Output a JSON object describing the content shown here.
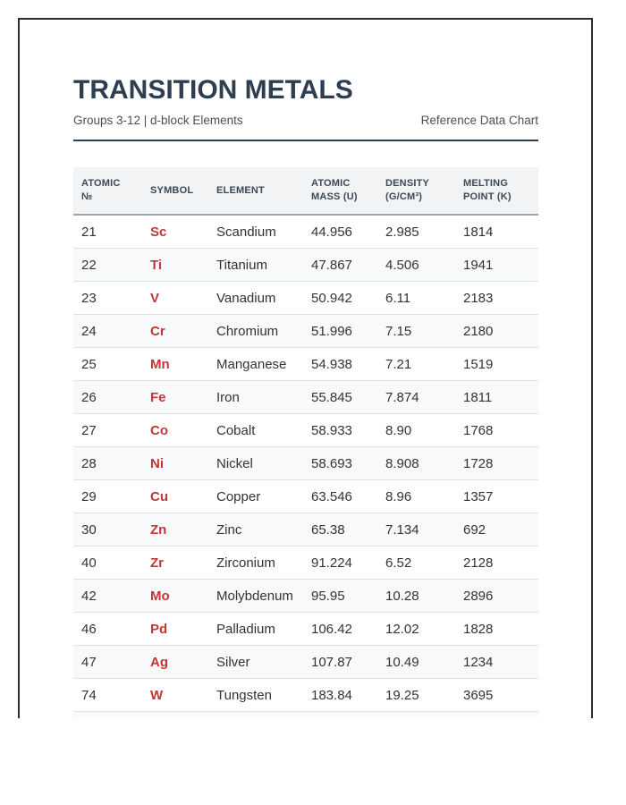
{
  "header": {
    "title": "TRANSITION METALS",
    "subtitle": "Groups 3-12 | d-block Elements",
    "reference_label": "Reference Data Chart"
  },
  "table": {
    "columns": [
      "ATOMIC\n№",
      "SYMBOL",
      "ELEMENT",
      "ATOMIC MASS (U)",
      "DENSITY (G/CM³)",
      "MELTING POINT (K)"
    ],
    "column_keys": [
      "atomic-number",
      "symbol",
      "element",
      "atomic-mass",
      "density",
      "melting-point"
    ],
    "rows": [
      [
        "21",
        "Sc",
        "Scandium",
        "44.956",
        "2.985",
        "1814"
      ],
      [
        "22",
        "Ti",
        "Titanium",
        "47.867",
        "4.506",
        "1941"
      ],
      [
        "23",
        "V",
        "Vanadium",
        "50.942",
        "6.11",
        "2183"
      ],
      [
        "24",
        "Cr",
        "Chromium",
        "51.996",
        "7.15",
        "2180"
      ],
      [
        "25",
        "Mn",
        "Manganese",
        "54.938",
        "7.21",
        "1519"
      ],
      [
        "26",
        "Fe",
        "Iron",
        "55.845",
        "7.874",
        "1811"
      ],
      [
        "27",
        "Co",
        "Cobalt",
        "58.933",
        "8.90",
        "1768"
      ],
      [
        "28",
        "Ni",
        "Nickel",
        "58.693",
        "8.908",
        "1728"
      ],
      [
        "29",
        "Cu",
        "Copper",
        "63.546",
        "8.96",
        "1357"
      ],
      [
        "30",
        "Zn",
        "Zinc",
        "65.38",
        "7.134",
        "692"
      ],
      [
        "40",
        "Zr",
        "Zirconium",
        "91.224",
        "6.52",
        "2128"
      ],
      [
        "42",
        "Mo",
        "Molybdenum",
        "95.95",
        "10.28",
        "2896"
      ],
      [
        "46",
        "Pd",
        "Palladium",
        "106.42",
        "12.02",
        "1828"
      ],
      [
        "47",
        "Ag",
        "Silver",
        "107.87",
        "10.49",
        "1234"
      ],
      [
        "74",
        "W",
        "Tungsten",
        "183.84",
        "19.25",
        "3695"
      ]
    ]
  },
  "colors": {
    "title": "#2c3e50",
    "symbol_accent": "#c13737",
    "header_bg": "#f2f3f5",
    "row_alt_bg": "#f8f9fa",
    "frame_border": "#2e2e2e"
  }
}
